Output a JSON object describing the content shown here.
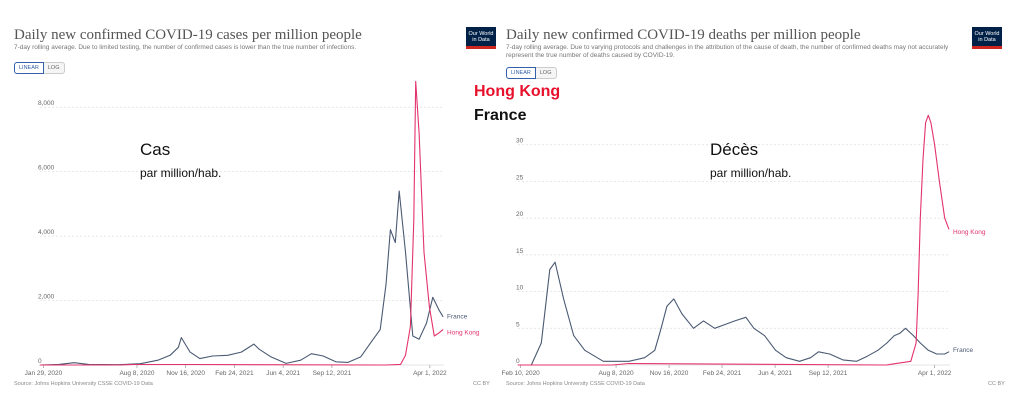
{
  "panels": {
    "cases": {
      "title": "Daily new confirmed COVID-19 cases per million people",
      "subtitle": "7-day rolling average. Due to limited testing, the number of confirmed cases is lower than the true number of infections.",
      "toggle": [
        "LINEAR",
        "LOG"
      ],
      "annotation_big": "Cas",
      "annotation_small": "par million/hab.",
      "source": "Source: Johns Hopkins University CSSE COVID-19 Data",
      "license": "CC BY"
    },
    "deaths": {
      "title": "Daily new confirmed COVID-19 deaths per million people",
      "subtitle": "7-day rolling average. Due to varying protocols and challenges in the attribution of the cause of death, the number of confirmed deaths may not accurately represent the true number of deaths caused by COVID-19.",
      "toggle": [
        "LINEAR",
        "LOG"
      ],
      "logo": "Our World in Data",
      "annotation_big": "Décès",
      "annotation_small": "par million/hab.",
      "source": "Source: Johns Hopkins University CSSE COVID-19 Data",
      "license": "CC BY"
    }
  },
  "legend": {
    "hong_kong": "Hong Kong",
    "france": "France"
  },
  "colors": {
    "hong_kong": "#e3336b",
    "france": "#4b5a73"
  },
  "chart_data": [
    {
      "type": "line",
      "title": "Daily new confirmed COVID-19 cases per million people",
      "ylim": [
        0,
        9000
      ],
      "yticks": [
        0,
        2000,
        4000,
        6000,
        8000
      ],
      "ytick_labels": [
        "0",
        "2,000",
        "4,000",
        "6,000",
        "8,000"
      ],
      "xlim": [
        "2020-01-22",
        "2022-04-30"
      ],
      "xticks": [
        "2020-01-29",
        "2020-08-08",
        "2020-11-16",
        "2021-02-24",
        "2021-06-04",
        "2021-09-12",
        "2022-04-01"
      ],
      "xtick_labels": [
        "Jan 29, 2020",
        "Aug 8, 2020",
        "Nov 16, 2020",
        "Feb 24, 2021",
        "Jun 4, 2021",
        "Sep 12, 2021",
        "Apr 1, 2022"
      ],
      "grid": true,
      "series": [
        {
          "name": "France",
          "x": [
            "2020-01-22",
            "2020-03-01",
            "2020-04-01",
            "2020-05-01",
            "2020-07-01",
            "2020-08-15",
            "2020-09-20",
            "2020-10-15",
            "2020-11-01",
            "2020-11-07",
            "2020-11-25",
            "2020-12-15",
            "2021-01-10",
            "2021-02-10",
            "2021-03-10",
            "2021-04-05",
            "2021-04-15",
            "2021-05-10",
            "2021-06-10",
            "2021-07-10",
            "2021-08-01",
            "2021-08-25",
            "2021-09-20",
            "2021-10-15",
            "2021-11-10",
            "2021-12-01",
            "2021-12-20",
            "2022-01-01",
            "2022-01-10",
            "2022-01-20",
            "2022-01-28",
            "2022-02-10",
            "2022-02-25",
            "2022-03-10",
            "2022-03-25",
            "2022-04-07",
            "2022-04-20",
            "2022-04-28"
          ],
          "y": [
            0,
            20,
            70,
            20,
            10,
            40,
            150,
            300,
            550,
            850,
            400,
            200,
            280,
            300,
            400,
            650,
            500,
            250,
            50,
            150,
            350,
            280,
            100,
            80,
            250,
            700,
            1100,
            2500,
            4200,
            3800,
            5400,
            3500,
            900,
            800,
            1300,
            2100,
            1700,
            1500
          ]
        },
        {
          "name": "Hong Kong",
          "x": [
            "2020-01-22",
            "2020-07-01",
            "2020-08-01",
            "2020-12-01",
            "2021-12-31",
            "2022-01-31",
            "2022-02-10",
            "2022-02-20",
            "2022-02-27",
            "2022-03-03",
            "2022-03-10",
            "2022-03-20",
            "2022-03-31",
            "2022-04-10",
            "2022-04-20",
            "2022-04-28"
          ],
          "y": [
            0,
            0,
            15,
            15,
            0,
            20,
            300,
            1200,
            4500,
            8800,
            7200,
            3500,
            1800,
            900,
            1000,
            1100
          ]
        }
      ]
    },
    {
      "type": "line",
      "title": "Daily new confirmed COVID-19 deaths per million people",
      "ylim": [
        0,
        35
      ],
      "yticks": [
        0,
        5,
        10,
        15,
        20,
        25,
        30
      ],
      "ytick_labels": [
        "0",
        "5",
        "10",
        "15",
        "20",
        "25",
        "30"
      ],
      "xlim": [
        "2020-02-05",
        "2022-04-30"
      ],
      "xticks": [
        "2020-02-10",
        "2020-08-08",
        "2020-11-16",
        "2021-02-24",
        "2021-06-04",
        "2021-09-12",
        "2022-04-01"
      ],
      "xtick_labels": [
        "Feb 10, 2020",
        "Aug 8, 2020",
        "Nov 16, 2020",
        "Feb 24, 2021",
        "Jun 4, 2021",
        "Sep 12, 2021",
        "Apr 1, 2022"
      ],
      "grid": true,
      "series": [
        {
          "name": "France",
          "x": [
            "2020-02-05",
            "2020-03-01",
            "2020-03-20",
            "2020-04-05",
            "2020-04-15",
            "2020-05-01",
            "2020-05-20",
            "2020-06-10",
            "2020-07-15",
            "2020-09-01",
            "2020-10-01",
            "2020-10-20",
            "2020-11-01",
            "2020-11-12",
            "2020-11-25",
            "2020-12-10",
            "2021-01-01",
            "2021-01-20",
            "2021-02-10",
            "2021-03-01",
            "2021-03-20",
            "2021-04-10",
            "2021-04-25",
            "2021-05-15",
            "2021-06-05",
            "2021-06-25",
            "2021-07-20",
            "2021-08-10",
            "2021-08-25",
            "2021-09-15",
            "2021-10-10",
            "2021-11-05",
            "2021-11-25",
            "2021-12-15",
            "2022-01-01",
            "2022-01-15",
            "2022-01-25",
            "2022-02-05",
            "2022-02-20",
            "2022-03-05",
            "2022-03-20",
            "2022-04-05",
            "2022-04-20",
            "2022-04-28"
          ],
          "y": [
            0,
            0,
            3,
            13,
            14,
            9,
            4,
            2,
            0.5,
            0.5,
            1,
            2,
            5,
            8,
            9,
            7,
            5,
            6,
            5,
            5.5,
            6,
            6.5,
            5,
            4,
            2,
            1,
            0.5,
            1,
            1.8,
            1.5,
            0.7,
            0.5,
            1.2,
            2,
            3,
            4,
            4.3,
            5,
            4,
            3,
            2,
            1.5,
            1.5,
            1.8
          ]
        },
        {
          "name": "Hong Kong",
          "x": [
            "2020-02-05",
            "2020-08-01",
            "2020-09-01",
            "2021-12-31",
            "2022-02-15",
            "2022-02-25",
            "2022-03-01",
            "2022-03-05",
            "2022-03-10",
            "2022-03-15",
            "2022-03-20",
            "2022-03-25",
            "2022-04-01",
            "2022-04-10",
            "2022-04-20",
            "2022-04-28"
          ],
          "y": [
            0,
            0,
            0.2,
            0,
            0.5,
            3,
            10,
            20,
            28,
            33,
            34,
            33,
            30,
            25,
            20,
            18.5
          ]
        }
      ]
    }
  ]
}
